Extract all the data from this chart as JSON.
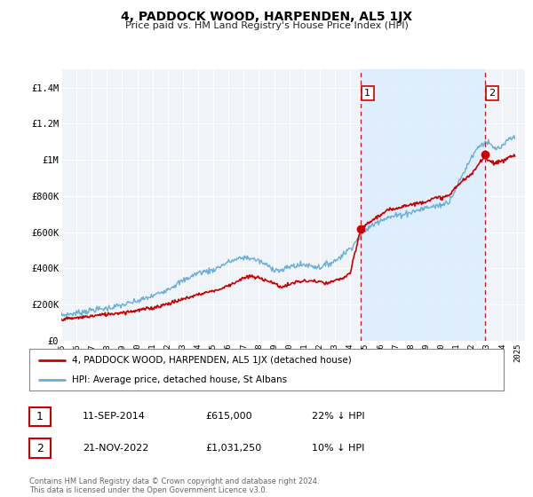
{
  "title": "4, PADDOCK WOOD, HARPENDEN, AL5 1JX",
  "subtitle": "Price paid vs. HM Land Registry's House Price Index (HPI)",
  "ylabel_ticks": [
    "£0",
    "£200K",
    "£400K",
    "£600K",
    "£800K",
    "£1M",
    "£1.2M",
    "£1.4M"
  ],
  "ytick_values": [
    0,
    200000,
    400000,
    600000,
    800000,
    1000000,
    1200000,
    1400000
  ],
  "ylim": [
    0,
    1500000
  ],
  "xlim_start": 1995.0,
  "xlim_end": 2025.5,
  "hpi_color": "#6baed6",
  "hpi_fill_color": "#ddeeff",
  "price_color": "#cc0000",
  "vline1_x": 2014.69,
  "vline2_x": 2022.89,
  "marker1_x": 2014.69,
  "marker1_y": 615000,
  "marker2_x": 2022.89,
  "marker2_y": 1031250,
  "legend_line1": "4, PADDOCK WOOD, HARPENDEN, AL5 1JX (detached house)",
  "legend_line2": "HPI: Average price, detached house, St Albans",
  "annotation1_label": "1",
  "annotation1_date": "11-SEP-2014",
  "annotation1_price": "£615,000",
  "annotation1_hpi": "22% ↓ HPI",
  "annotation2_label": "2",
  "annotation2_date": "21-NOV-2022",
  "annotation2_price": "£1,031,250",
  "annotation2_hpi": "10% ↓ HPI",
  "footnote1": "Contains HM Land Registry data © Crown copyright and database right 2024.",
  "footnote2": "This data is licensed under the Open Government Licence v3.0.",
  "plot_bg_color": "#f0f4f8",
  "grid_color": "#ffffff"
}
